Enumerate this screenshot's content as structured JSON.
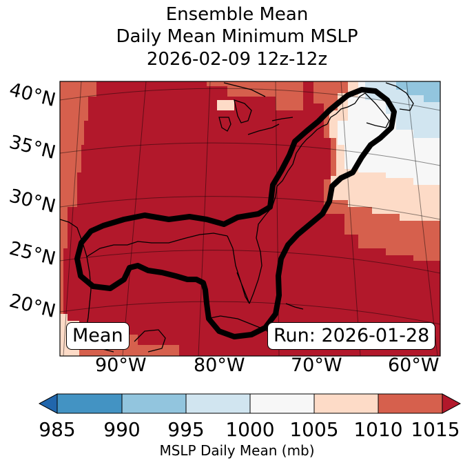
{
  "title_lines": [
    "Ensemble Mean",
    "Daily Mean Minimum MSLP",
    "2026-02-09 12z-12z"
  ],
  "lat_labels": [
    "40°N",
    "35°N",
    "30°N",
    "25°N",
    "20°N"
  ],
  "lon_labels": [
    "90°W",
    "80°W",
    "70°W",
    "60°W"
  ],
  "mean_badge": "Mean",
  "run_badge": "Run: 2026-01-28",
  "colorbar": {
    "ticks": [
      "985",
      "990",
      "995",
      "1000",
      "1005",
      "1010",
      "1015"
    ],
    "label": "MSLP Daily Mean (mb)",
    "colors": [
      "#2166ac",
      "#4393c3",
      "#92c5de",
      "#d1e5f0",
      "#f7f7f7",
      "#fddbc7",
      "#d6604d",
      "#b2182b"
    ]
  },
  "field_colors": {
    "dark_red": "#b2182b",
    "red": "#d6604d",
    "peach": "#fddbc7",
    "white": "#f7f7f7",
    "light_blue": "#d1e5f0",
    "blue": "#92c5de"
  }
}
